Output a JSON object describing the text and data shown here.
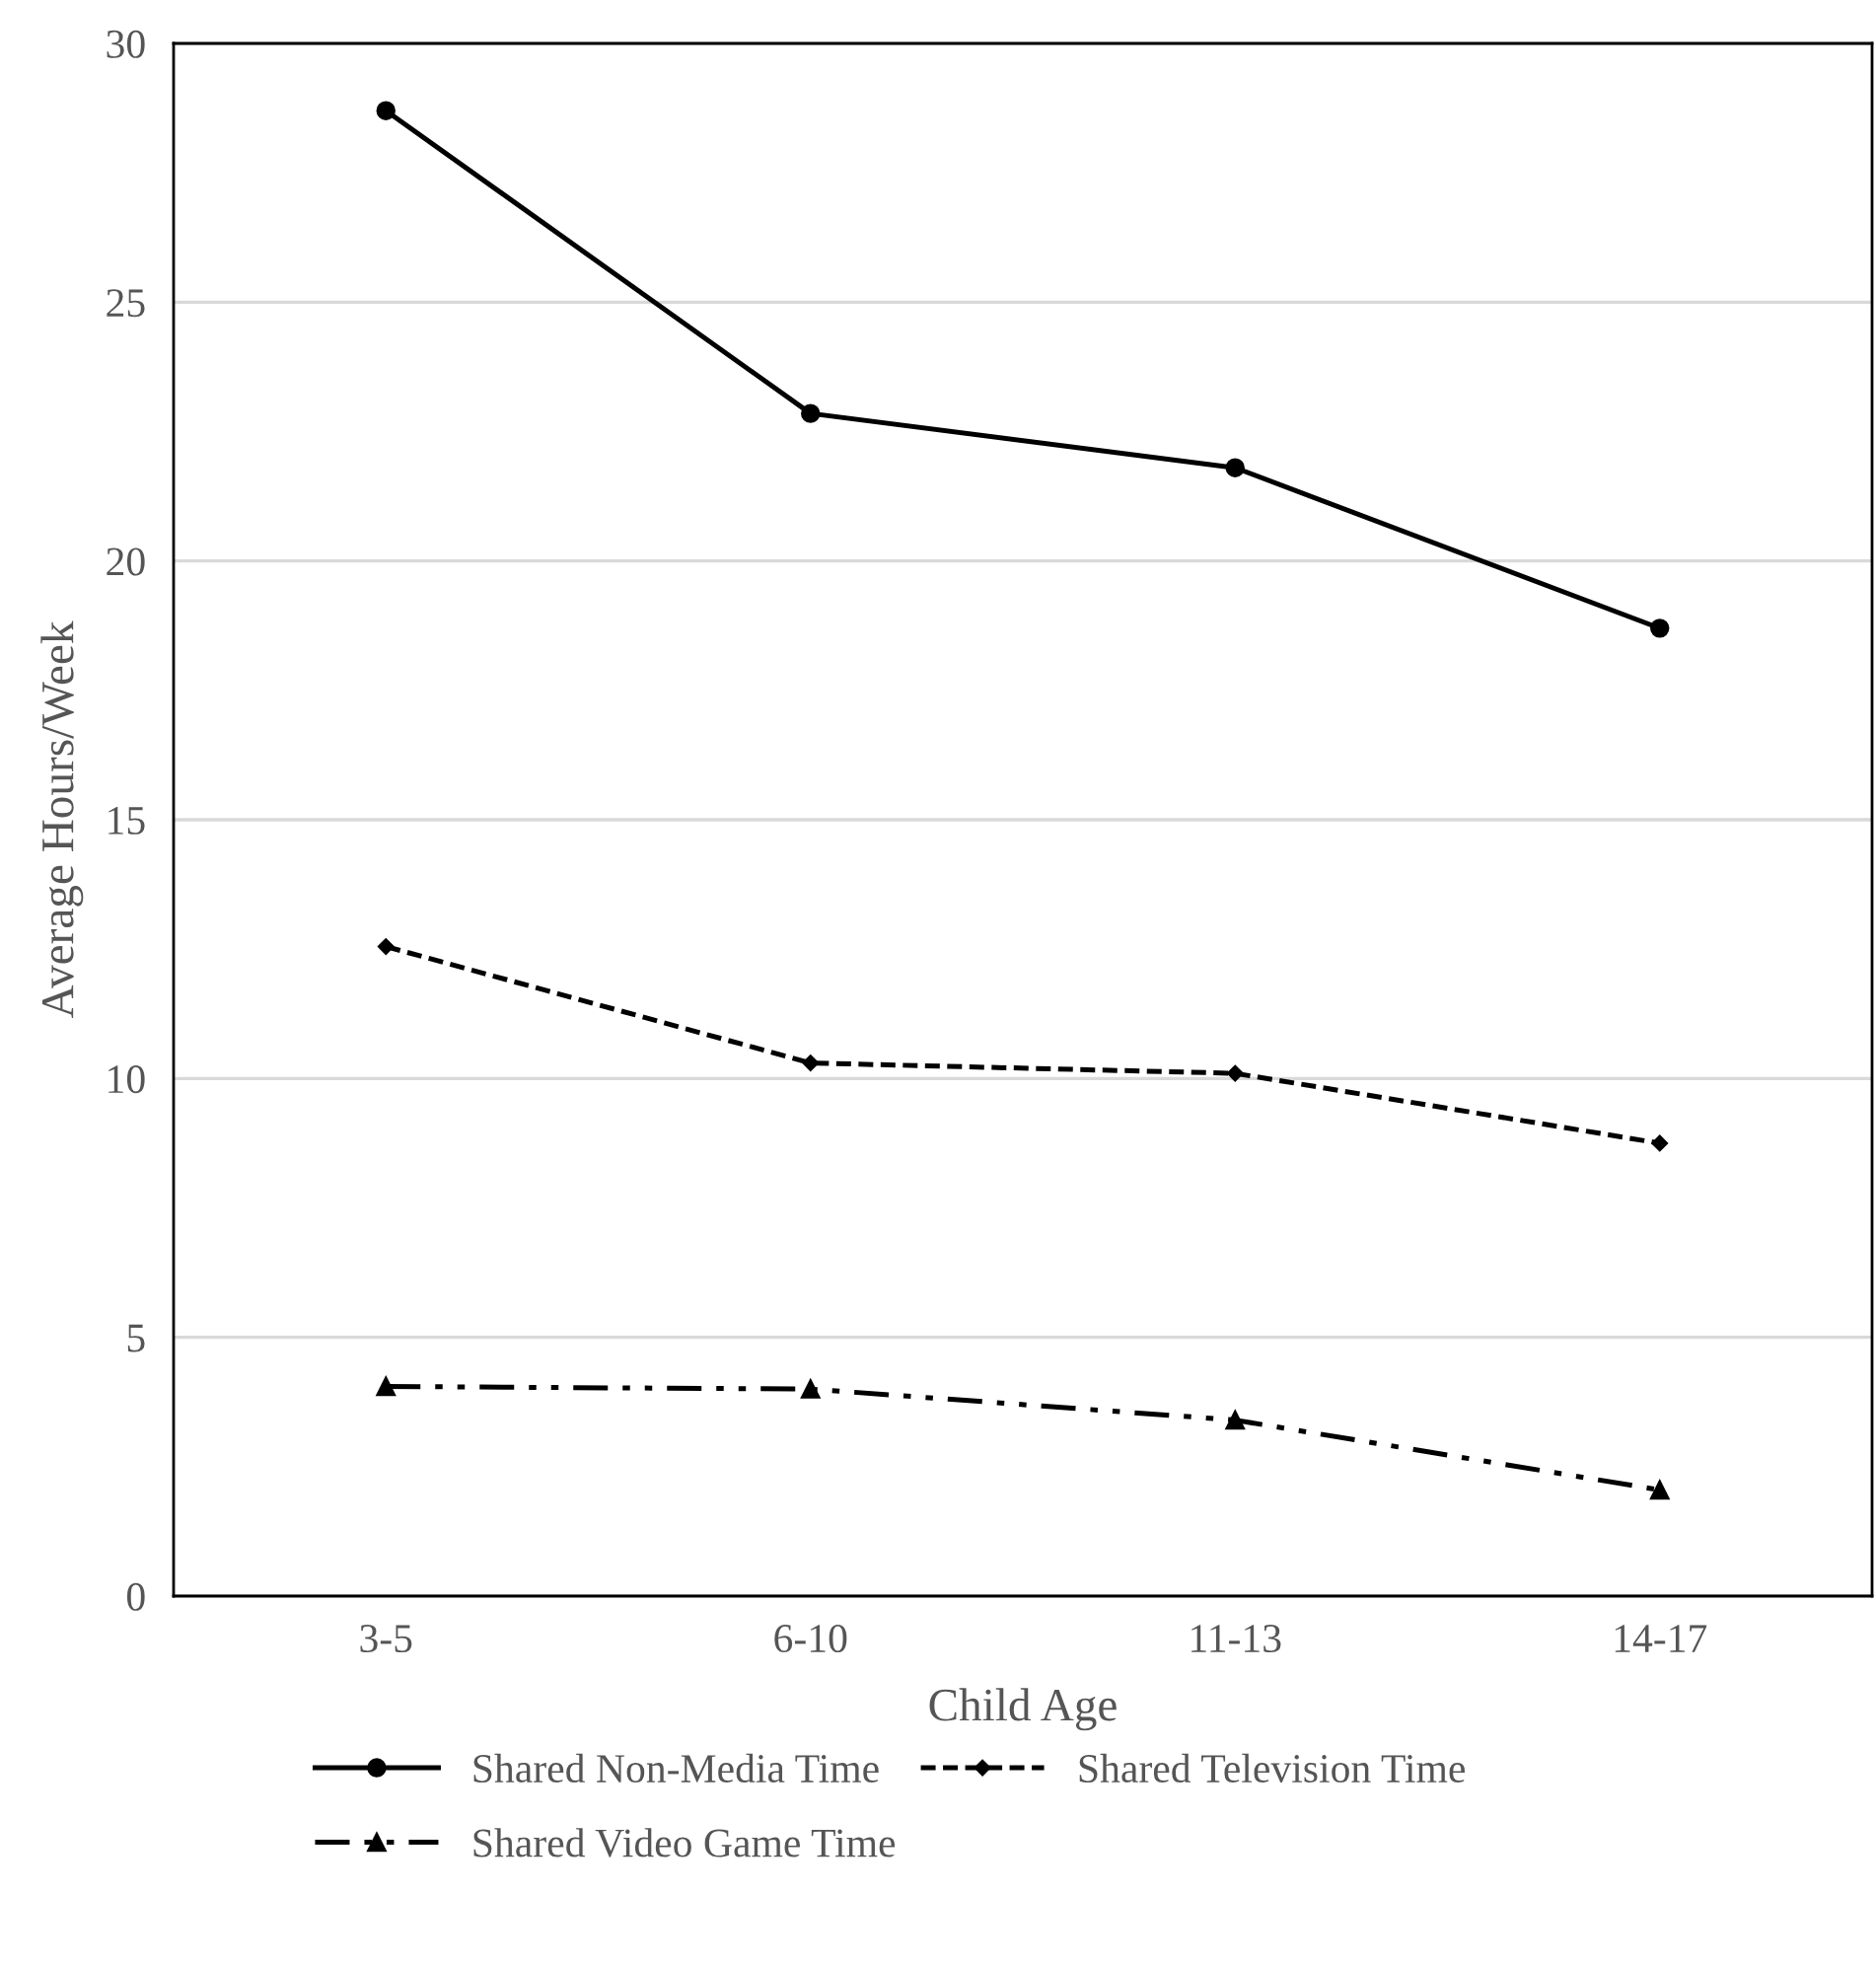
{
  "chart_data": {
    "type": "line",
    "xlabel": "Child Age",
    "ylabel": "Average Hours/Week",
    "categories": [
      "3-5",
      "6-10",
      "11-13",
      "14-17"
    ],
    "series": [
      {
        "name": "Shared Non-Media Time",
        "color": "#000000",
        "values": [
          28.7,
          22.85,
          21.8,
          18.7
        ],
        "marker": "circle",
        "line_style": "solid"
      },
      {
        "name": "Shared Television Time",
        "color": "#000000",
        "values": [
          12.55,
          10.3,
          10.1,
          8.75
        ],
        "marker": "diamond",
        "line_style": "dashed"
      },
      {
        "name": "Shared Video Game Time",
        "color": "#000000",
        "values": [
          4.05,
          4.0,
          3.4,
          2.05
        ],
        "marker": "triangle",
        "line_style": "dashdot"
      }
    ],
    "ylim": [
      0,
      30
    ],
    "yticks": [
      0,
      5,
      10,
      15,
      20,
      25,
      30
    ],
    "grid": "y",
    "legend": "bottom"
  }
}
